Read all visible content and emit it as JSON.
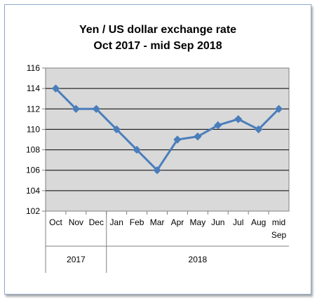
{
  "chart_data": {
    "type": "line",
    "title": [
      "Yen / US dollar exchange rate",
      "Oct 2017 - mid Sep 2018"
    ],
    "categories": [
      "Oct",
      "Nov",
      "Dec",
      "Jan",
      "Feb",
      "Mar",
      "Apr",
      "May",
      "Jun",
      "Jul",
      "Aug",
      "mid Sep"
    ],
    "category_label_lines": [
      [
        "Oct"
      ],
      [
        "Nov"
      ],
      [
        "Dec"
      ],
      [
        "Jan"
      ],
      [
        "Feb"
      ],
      [
        "Mar"
      ],
      [
        "Apr"
      ],
      [
        "May"
      ],
      [
        "Jun"
      ],
      [
        "Jul"
      ],
      [
        "Aug"
      ],
      [
        "mid",
        "Sep"
      ]
    ],
    "category_groups": [
      {
        "label": "2017",
        "count": 3
      },
      {
        "label": "2018",
        "count": 9
      }
    ],
    "series": [
      {
        "values": [
          114.0,
          112.0,
          112.0,
          110.0,
          108.0,
          106.0,
          109.0,
          109.3,
          110.4,
          111.0,
          110.0,
          112.0
        ],
        "color": "#4a7ebb"
      }
    ],
    "ylim": [
      102,
      116
    ],
    "yticks": [
      102,
      104,
      106,
      108,
      110,
      112,
      114,
      116
    ],
    "grid": true,
    "legend": "none",
    "plot_background": "#d9d9d9"
  }
}
